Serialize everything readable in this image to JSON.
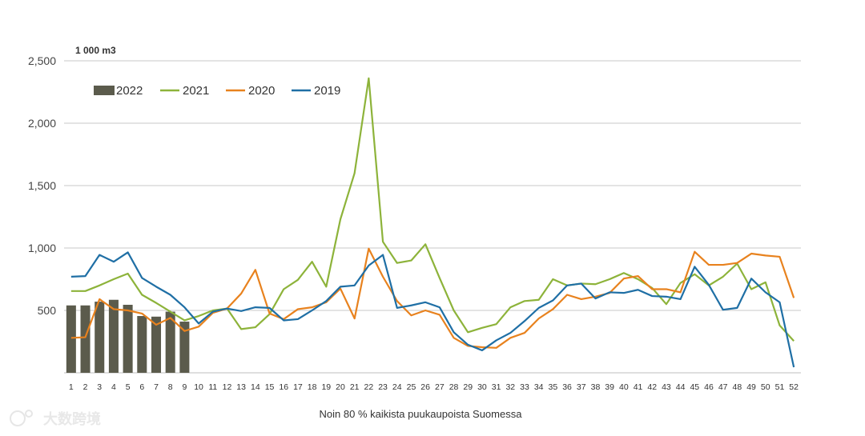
{
  "chart_data": {
    "type": "bar+line",
    "unit_label": "1 000 m3",
    "xlabel": "Noin 80 % kaikista puukaupoista Suomessa",
    "ylim": [
      0,
      2500
    ],
    "yticks": [
      500,
      1000,
      1500,
      2000,
      2500
    ],
    "ytick_labels": [
      "500",
      "1,000",
      "1,500",
      "2,000",
      "2,500"
    ],
    "grid": true,
    "legend_position": "top-left",
    "categories": [
      "1",
      "2",
      "3",
      "4",
      "5",
      "6",
      "7",
      "8",
      "9",
      "10",
      "11",
      "12",
      "13",
      "14",
      "15",
      "16",
      "17",
      "18",
      "19",
      "20",
      "21",
      "22",
      "23",
      "24",
      "25",
      "26",
      "27",
      "28",
      "29",
      "30",
      "31",
      "32",
      "33",
      "34",
      "35",
      "36",
      "37",
      "38",
      "39",
      "40",
      "41",
      "42",
      "43",
      "44",
      "45",
      "46",
      "47",
      "48",
      "49",
      "50",
      "51",
      "52"
    ],
    "bars": {
      "name": "2022",
      "color": "#5b5b4c",
      "values": [
        540,
        540,
        570,
        585,
        545,
        455,
        450,
        490,
        410
      ]
    },
    "series": [
      {
        "name": "2021",
        "color": "#8db33a",
        "values": [
          655,
          655,
          700,
          750,
          795,
          625,
          560,
          490,
          420,
          455,
          500,
          515,
          350,
          365,
          470,
          670,
          745,
          890,
          690,
          1230,
          1600,
          2360,
          1050,
          880,
          900,
          1030,
          760,
          500,
          325,
          360,
          390,
          525,
          575,
          585,
          750,
          700,
          715,
          710,
          750,
          800,
          750,
          680,
          550,
          720,
          790,
          700,
          770,
          875,
          670,
          725,
          380,
          255
        ]
      },
      {
        "name": "2020",
        "color": "#e8821e",
        "values": [
          280,
          285,
          590,
          510,
          500,
          475,
          385,
          440,
          335,
          370,
          480,
          515,
          635,
          825,
          475,
          430,
          510,
          525,
          565,
          675,
          435,
          995,
          770,
          575,
          460,
          500,
          465,
          280,
          215,
          205,
          200,
          280,
          320,
          435,
          510,
          625,
          590,
          610,
          640,
          755,
          775,
          670,
          670,
          645,
          970,
          865,
          865,
          880,
          955,
          940,
          930,
          600
        ]
      },
      {
        "name": "2019",
        "color": "#1f6fa5",
        "values": [
          770,
          775,
          945,
          890,
          965,
          760,
          690,
          625,
          525,
          395,
          490,
          515,
          495,
          525,
          520,
          420,
          430,
          500,
          575,
          690,
          700,
          860,
          945,
          520,
          540,
          565,
          525,
          325,
          225,
          180,
          260,
          320,
          415,
          520,
          580,
          700,
          715,
          595,
          645,
          640,
          665,
          615,
          610,
          590,
          850,
          705,
          505,
          520,
          755,
          645,
          565,
          45
        ]
      }
    ]
  },
  "watermark": "大数跨境"
}
